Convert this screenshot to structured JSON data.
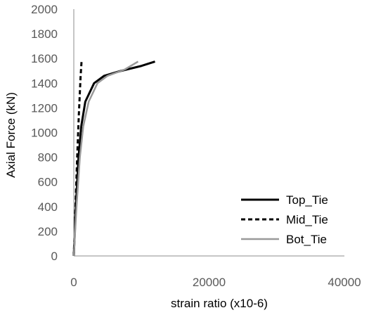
{
  "chart_data": {
    "type": "line",
    "title": "",
    "xlabel": "strain ratio (x10-6)",
    "ylabel": "Axial Force (kN)",
    "xlim": [
      0,
      40000
    ],
    "ylim": [
      0,
      2000
    ],
    "x_ticks": [
      "0",
      "20000",
      "40000"
    ],
    "y_ticks": [
      "0",
      "200",
      "400",
      "600",
      "800",
      "1000",
      "1200",
      "1400",
      "1600",
      "1800",
      "2000"
    ],
    "grid": false,
    "legend_position": "bottom-right",
    "series": [
      {
        "name": "Top_Tie",
        "color": "#000000",
        "dash": "solid",
        "points": [
          [
            0,
            0
          ],
          [
            300,
            400
          ],
          [
            700,
            800
          ],
          [
            1100,
            1050
          ],
          [
            1700,
            1250
          ],
          [
            3000,
            1400
          ],
          [
            4500,
            1460
          ],
          [
            7000,
            1500
          ],
          [
            10000,
            1540
          ],
          [
            12000,
            1575
          ]
        ]
      },
      {
        "name": "Mid_Tie",
        "color": "#000000",
        "dash": "dashed",
        "points": [
          [
            0,
            0
          ],
          [
            250,
            400
          ],
          [
            500,
            800
          ],
          [
            750,
            1150
          ],
          [
            1000,
            1450
          ],
          [
            1150,
            1580
          ]
        ]
      },
      {
        "name": "Bot_Tie",
        "color": "#999999",
        "dash": "solid",
        "points": [
          [
            0,
            0
          ],
          [
            400,
            400
          ],
          [
            900,
            800
          ],
          [
            1400,
            1050
          ],
          [
            2200,
            1250
          ],
          [
            3500,
            1400
          ],
          [
            5000,
            1460
          ],
          [
            7500,
            1510
          ],
          [
            9500,
            1575
          ]
        ]
      }
    ]
  }
}
